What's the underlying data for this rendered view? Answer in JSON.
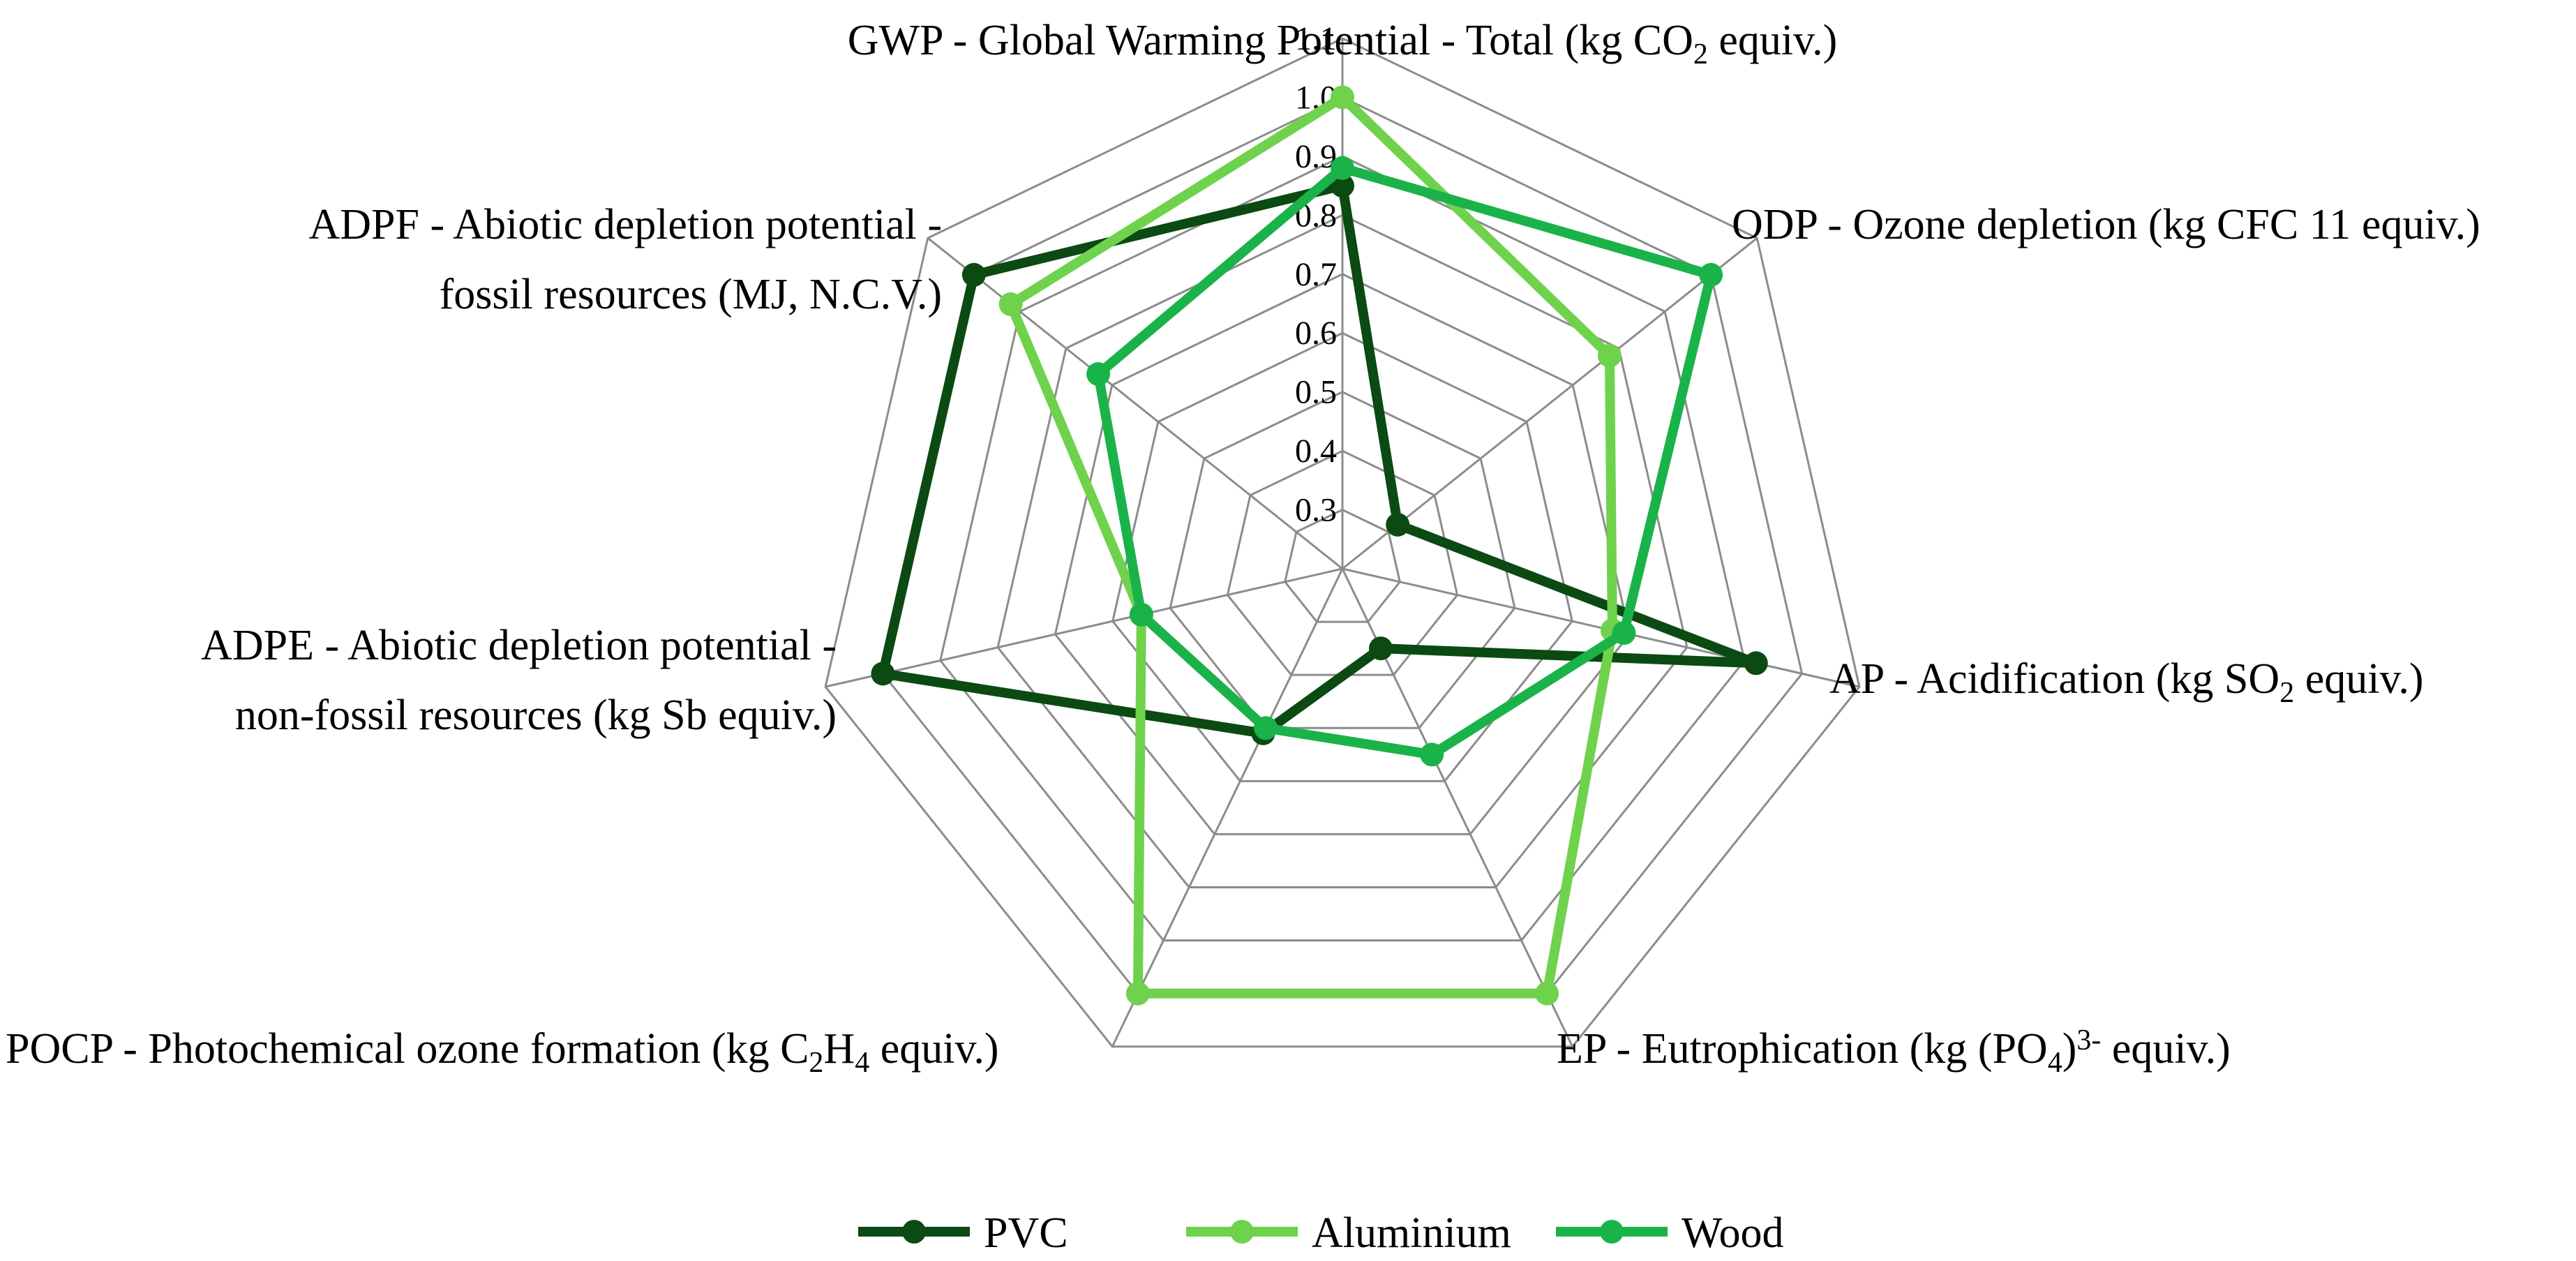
{
  "chart_data": {
    "type": "radar",
    "title": "",
    "axes": [
      "GWP - Global Warming Potential - Total (kg CO2 equiv.)",
      "ODP - Ozone depletion (kg CFC 11 equiv.)",
      "AP - Acidification (kg SO2 equiv.)",
      "EP - Eutrophication (kg (PO4)3- equiv.)",
      "POCP - Photochemical ozone formation (kg C2H4 equiv.)",
      "ADPE - Abiotic depletion potential - non-fossil resources (kg Sb equiv.)",
      "ADPF - Abiotic depletion potential - fossil resources (MJ, N.C.V.)"
    ],
    "axis_label_lines": [
      [
        {
          "segments": [
            {
              "t": "GWP - Global Warming Potential - Total (kg CO"
            },
            {
              "t": "2",
              "sub": true
            },
            {
              "t": " equiv.)"
            }
          ]
        }
      ],
      [
        {
          "segments": [
            {
              "t": "ODP - Ozone depletion (kg CFC 11 equiv.)"
            }
          ]
        }
      ],
      [
        {
          "segments": [
            {
              "t": "AP - Acidification (kg SO"
            },
            {
              "t": "2",
              "sub": true
            },
            {
              "t": " equiv.)"
            }
          ]
        }
      ],
      [
        {
          "segments": [
            {
              "t": "EP - Eutrophication (kg (PO"
            },
            {
              "t": "4",
              "sub": true
            },
            {
              "t": ")"
            },
            {
              "t": "3-",
              "sup": true
            },
            {
              "t": " equiv.)"
            }
          ]
        }
      ],
      [
        {
          "segments": [
            {
              "t": "POCP - Photochemical ozone formation (kg C"
            },
            {
              "t": "2",
              "sub": true
            },
            {
              "t": "H"
            },
            {
              "t": "4",
              "sub": true
            },
            {
              "t": " equiv.)"
            }
          ]
        }
      ],
      [
        {
          "segments": [
            {
              "t": "ADPE - Abiotic depletion potential -"
            }
          ]
        },
        {
          "segments": [
            {
              "t": "non-fossil resources (kg Sb equiv.)"
            }
          ]
        }
      ],
      [
        {
          "segments": [
            {
              "t": "ADPF - Abiotic depletion potential -"
            }
          ]
        },
        {
          "segments": [
            {
              "t": "fossil resources (MJ, N.C.V.)"
            }
          ]
        }
      ]
    ],
    "rmin": 0.2,
    "rmax": 1.1,
    "ticks": [
      0.3,
      0.4,
      0.5,
      0.6,
      0.7,
      0.8,
      0.9,
      1.0,
      1.1
    ],
    "tick_labels": [
      "0.3",
      "0.4",
      "0.5",
      "0.6",
      "0.7",
      "0.8",
      "0.9",
      "1.0",
      "1.1"
    ],
    "grid": true,
    "legend_position": "bottom",
    "series": [
      {
        "name": "PVC",
        "color": "#0b4a12",
        "values": [
          0.85,
          0.32,
          0.92,
          0.35,
          0.51,
          1.0,
          1.0
        ]
      },
      {
        "name": "Aluminium",
        "color": "#6fd24c",
        "values": [
          1.0,
          0.78,
          0.67,
          1.0,
          1.0,
          0.55,
          0.92
        ]
      },
      {
        "name": "Wood",
        "color": "#1ab349",
        "values": [
          0.88,
          1.0,
          0.69,
          0.55,
          0.5,
          0.55,
          0.73
        ]
      }
    ]
  }
}
